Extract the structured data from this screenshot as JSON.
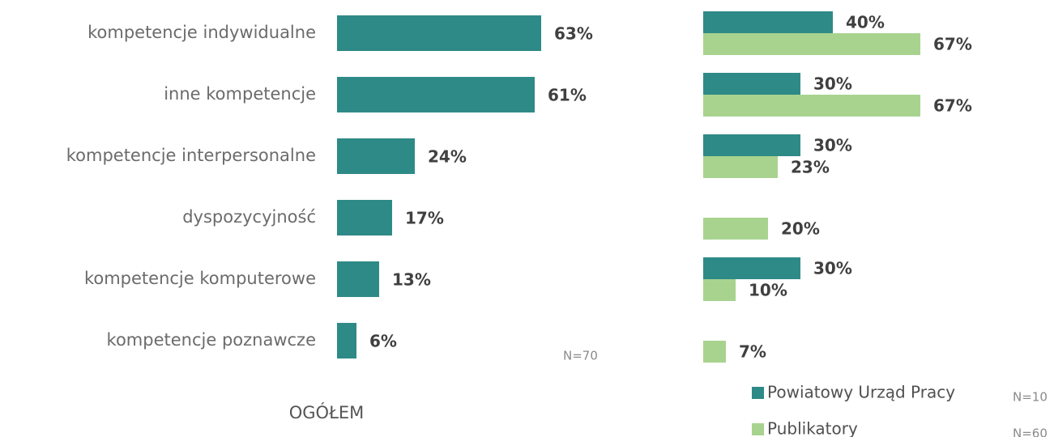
{
  "chart_data": [
    {
      "type": "bar",
      "orientation": "horizontal",
      "subtitle": "OGÓŁEM",
      "annotation": "N=70",
      "categories": [
        "kompetencje indywidualne",
        "inne kompetencje",
        "kompetencje interpersonalne",
        "dyspozycyjność",
        "kompetencje komputerowe",
        "kompetencje poznawcze"
      ],
      "values": [
        63,
        61,
        24,
        17,
        13,
        6
      ],
      "value_labels": [
        "63%",
        "61%",
        "24%",
        "17%",
        "13%",
        "6%"
      ],
      "color": "#2e8a87"
    },
    {
      "type": "grouped_bar",
      "orientation": "horizontal",
      "categories": [
        null,
        null,
        null,
        null,
        null,
        null
      ],
      "series": [
        {
          "name": "Powiatowy Urząd Pracy",
          "color": "#2e8a87",
          "annotation": "N=10",
          "values": [
            40,
            30,
            30,
            null,
            30,
            null
          ],
          "value_labels": [
            "40%",
            "30%",
            "30%",
            null,
            "30%",
            null
          ]
        },
        {
          "name": "Publikatory",
          "color": "#a8d38f",
          "annotation": "N=60",
          "values": [
            67,
            67,
            23,
            20,
            10,
            7
          ],
          "value_labels": [
            "67%",
            "67%",
            "23%",
            "20%",
            "10%",
            "7%"
          ]
        }
      ],
      "legend": "bottom-right"
    }
  ]
}
